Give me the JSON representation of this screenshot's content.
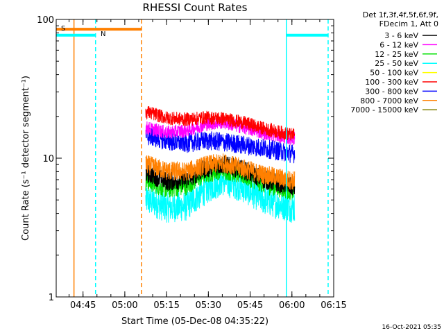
{
  "chart_data": {
    "type": "line",
    "title": "RHESSI Count Rates",
    "xlabel": "Start Time (05-Dec-08 04:35:22)",
    "ylabel": "Count Rate (s⁻¹ detector segment⁻¹)",
    "yscale": "log",
    "ylim": [
      1,
      100
    ],
    "xlim": [
      "04:35:22",
      "06:15:00"
    ],
    "x_tick_labels": [
      "04:45",
      "05:00",
      "05:15",
      "05:30",
      "05:45",
      "06:00",
      "06:15"
    ],
    "y_tick_labels": [
      "1",
      "10",
      "100"
    ],
    "grid": false,
    "legend_position": "right",
    "legend_header": [
      "Det 1f,3f,4f,5f,6f,9f,",
      "FDecim 1, Att 0"
    ],
    "footer_timestamp": "16-Oct-2021 05:35",
    "band_labels": {
      "S": "S",
      "N": "N"
    },
    "bands": [
      {
        "label": "S",
        "color": "#ff8000",
        "start": "04:35:22",
        "end": "05:06:00",
        "y": 85,
        "line_style": "solid"
      },
      {
        "label": "N",
        "color": "#00ffff",
        "start": "04:35:22",
        "end": "04:49:30",
        "y": 77,
        "line_style": "solid"
      },
      {
        "label": "",
        "color": "#00ffff",
        "start": "05:58:00",
        "end": "06:13:00",
        "y": 77,
        "line_style": "solid"
      }
    ],
    "vertical_markers": [
      {
        "time": "04:41:45",
        "color": "#ff8000",
        "style": "solid"
      },
      {
        "time": "04:49:30",
        "color": "#00ffff",
        "style": "dashed"
      },
      {
        "time": "05:06:00",
        "color": "#ff8000",
        "style": "dashed"
      },
      {
        "time": "05:58:00",
        "color": "#00ffff",
        "style": "solid"
      },
      {
        "time": "06:13:00",
        "color": "#00ffff",
        "style": "dashed"
      }
    ],
    "data_time_range": [
      "05:07:30",
      "06:01:00"
    ],
    "series": [
      {
        "name": "3 - 6 keV",
        "color": "#000000",
        "x": [
          "05:08",
          "05:15",
          "05:22",
          "05:29",
          "05:35",
          "05:42",
          "05:50",
          "06:00"
        ],
        "y": [
          7.8,
          6.8,
          7.0,
          8.4,
          9.0,
          8.3,
          7.0,
          6.2
        ]
      },
      {
        "name": "6 - 12 keV",
        "color": "#ff00ff",
        "x": [
          "05:08",
          "05:15",
          "05:22",
          "05:29",
          "05:35",
          "05:42",
          "05:50",
          "06:00"
        ],
        "y": [
          16.5,
          15.3,
          15.8,
          17.5,
          18.2,
          16.8,
          15.2,
          13.8
        ]
      },
      {
        "name": "12 - 25 keV",
        "color": "#00e000",
        "x": [
          "05:08",
          "05:15",
          "05:22",
          "05:29",
          "05:35",
          "05:42",
          "05:50",
          "06:00"
        ],
        "y": [
          6.8,
          6.0,
          6.3,
          7.7,
          8.3,
          7.6,
          6.5,
          5.8
        ]
      },
      {
        "name": "25 - 50 keV",
        "color": "#00ffff",
        "x": [
          "05:08",
          "05:15",
          "05:22",
          "05:29",
          "05:35",
          "05:42",
          "05:50",
          "06:00"
        ],
        "y": [
          5.0,
          4.4,
          4.5,
          5.9,
          6.9,
          6.2,
          5.0,
          4.4
        ]
      },
      {
        "name": "50 - 100 keV",
        "color": "#ffff00",
        "x": [],
        "y": []
      },
      {
        "name": "100 - 300 keV",
        "color": "#ff0000",
        "x": [
          "05:08",
          "05:15",
          "05:22",
          "05:29",
          "05:35",
          "05:42",
          "05:50",
          "06:00"
        ],
        "y": [
          21.5,
          19.5,
          19.0,
          19.6,
          19.3,
          18.2,
          16.3,
          14.7
        ]
      },
      {
        "name": "300 - 800 keV",
        "color": "#0000ff",
        "x": [
          "05:08",
          "05:15",
          "05:22",
          "05:29",
          "05:35",
          "05:42",
          "05:50",
          "06:00"
        ],
        "y": [
          14.5,
          13.3,
          12.8,
          13.4,
          13.1,
          12.5,
          11.8,
          10.8
        ]
      },
      {
        "name": "800 - 7000 keV",
        "color": "#ff8000",
        "x": [
          "05:08",
          "05:15",
          "05:22",
          "05:29",
          "05:35",
          "05:42",
          "05:50",
          "06:00"
        ],
        "y": [
          9.0,
          8.1,
          8.0,
          8.9,
          9.3,
          8.5,
          7.6,
          6.9
        ]
      },
      {
        "name": "7000 - 15000 keV",
        "color": "#808000",
        "x": [],
        "y": []
      }
    ]
  }
}
